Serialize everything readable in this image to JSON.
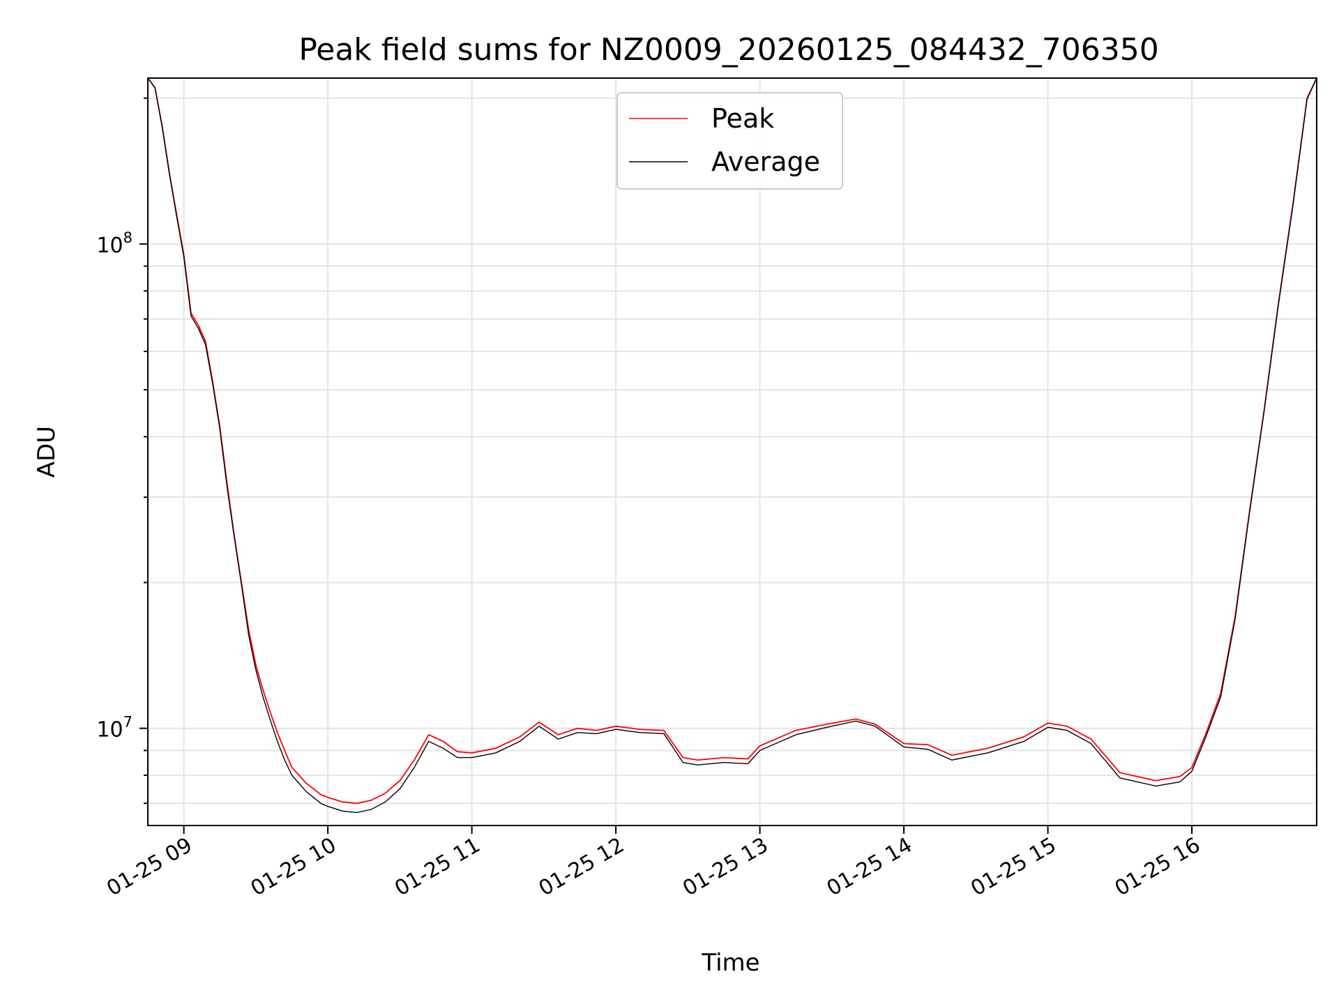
{
  "chart_data": {
    "type": "line",
    "title": "Peak field sums for NZ0009_20260125_084432_706350",
    "xlabel": "Time",
    "ylabel": "ADU",
    "yscale": "log",
    "ylim": [
      6300000,
      220000000
    ],
    "xlim": [
      "2026-01-25T08:45:00",
      "2026-01-25T16:52:00"
    ],
    "x_ticks": [
      {
        "value": "2026-01-25T09:00:00",
        "label": "01-25 09"
      },
      {
        "value": "2026-01-25T10:00:00",
        "label": "01-25 10"
      },
      {
        "value": "2026-01-25T11:00:00",
        "label": "01-25 11"
      },
      {
        "value": "2026-01-25T12:00:00",
        "label": "01-25 12"
      },
      {
        "value": "2026-01-25T13:00:00",
        "label": "01-25 13"
      },
      {
        "value": "2026-01-25T14:00:00",
        "label": "01-25 14"
      },
      {
        "value": "2026-01-25T15:00:00",
        "label": "01-25 15"
      },
      {
        "value": "2026-01-25T16:00:00",
        "label": "01-25 16"
      }
    ],
    "y_ticks": [
      {
        "value": 10000000,
        "base": "10",
        "exp": "7"
      },
      {
        "value": 100000000,
        "base": "10",
        "exp": "8"
      }
    ],
    "grid": true,
    "legend_position": "top-center",
    "x": [
      "2026-01-25T08:45:00",
      "2026-01-25T08:48:00",
      "2026-01-25T08:51:00",
      "2026-01-25T08:54:00",
      "2026-01-25T08:57:00",
      "2026-01-25T09:00:00",
      "2026-01-25T09:03:00",
      "2026-01-25T09:06:00",
      "2026-01-25T09:09:00",
      "2026-01-25T09:12:00",
      "2026-01-25T09:15:00",
      "2026-01-25T09:18:00",
      "2026-01-25T09:21:00",
      "2026-01-25T09:24:00",
      "2026-01-25T09:27:00",
      "2026-01-25T09:30:00",
      "2026-01-25T09:33:00",
      "2026-01-25T09:36:00",
      "2026-01-25T09:39:00",
      "2026-01-25T09:42:00",
      "2026-01-25T09:45:00",
      "2026-01-25T09:48:00",
      "2026-01-25T09:51:00",
      "2026-01-25T09:54:00",
      "2026-01-25T09:57:00",
      "2026-01-25T10:00:00",
      "2026-01-25T10:06:00",
      "2026-01-25T10:12:00",
      "2026-01-25T10:18:00",
      "2026-01-25T10:24:00",
      "2026-01-25T10:30:00",
      "2026-01-25T10:36:00",
      "2026-01-25T10:42:00",
      "2026-01-25T10:48:00",
      "2026-01-25T10:54:00",
      "2026-01-25T11:00:00",
      "2026-01-25T11:10:00",
      "2026-01-25T11:20:00",
      "2026-01-25T11:28:00",
      "2026-01-25T11:36:00",
      "2026-01-25T11:44:00",
      "2026-01-25T11:52:00",
      "2026-01-25T12:00:00",
      "2026-01-25T12:10:00",
      "2026-01-25T12:20:00",
      "2026-01-25T12:28:00",
      "2026-01-25T12:34:00",
      "2026-01-25T12:45:00",
      "2026-01-25T12:55:00",
      "2026-01-25T13:00:00",
      "2026-01-25T13:15:00",
      "2026-01-25T13:28:00",
      "2026-01-25T13:40:00",
      "2026-01-25T13:48:00",
      "2026-01-25T14:00:00",
      "2026-01-25T14:10:00",
      "2026-01-25T14:20:00",
      "2026-01-25T14:35:00",
      "2026-01-25T14:50:00",
      "2026-01-25T15:00:00",
      "2026-01-25T15:08:00",
      "2026-01-25T15:18:00",
      "2026-01-25T15:30:00",
      "2026-01-25T15:45:00",
      "2026-01-25T15:55:00",
      "2026-01-25T16:00:00",
      "2026-01-25T16:06:00",
      "2026-01-25T16:12:00",
      "2026-01-25T16:18:00",
      "2026-01-25T16:24:00",
      "2026-01-25T16:30:00",
      "2026-01-25T16:36:00",
      "2026-01-25T16:42:00",
      "2026-01-25T16:48:00",
      "2026-01-25T16:52:00"
    ],
    "series": [
      {
        "name": "Peak",
        "color": "#ff0000",
        "values": [
          220000000,
          210000000,
          175000000,
          140000000,
          115000000,
          95000000,
          72000000,
          68000000,
          63000000,
          52000000,
          42000000,
          32000000,
          25000000,
          20000000,
          16000000,
          13500000,
          12000000,
          10800000,
          9800000,
          9000000,
          8300000,
          8000000,
          7700000,
          7500000,
          7300000,
          7200000,
          7050000,
          7000000,
          7100000,
          7350000,
          7800000,
          8600000,
          9700000,
          9400000,
          8950000,
          8900000,
          9100000,
          9600000,
          10300000,
          9700000,
          10000000,
          9900000,
          10100000,
          9950000,
          9900000,
          8700000,
          8600000,
          8700000,
          8650000,
          9200000,
          9900000,
          10200000,
          10450000,
          10200000,
          9300000,
          9250000,
          8800000,
          9100000,
          9600000,
          10250000,
          10100000,
          9500000,
          8100000,
          7800000,
          7950000,
          8300000,
          9800000,
          11800000,
          17000000,
          28000000,
          45000000,
          75000000,
          120000000,
          200000000,
          220000000
        ]
      },
      {
        "name": "Average",
        "color": "#000000",
        "values": [
          220000000,
          210000000,
          174000000,
          139000000,
          114000000,
          94000000,
          71000000,
          67000000,
          62000000,
          51500000,
          41500000,
          31500000,
          24800000,
          19800000,
          15600000,
          13200000,
          11600000,
          10400000,
          9400000,
          8600000,
          8000000,
          7700000,
          7400000,
          7200000,
          7000000,
          6900000,
          6750000,
          6700000,
          6800000,
          7050000,
          7500000,
          8300000,
          9400000,
          9100000,
          8700000,
          8700000,
          8900000,
          9400000,
          10100000,
          9500000,
          9800000,
          9750000,
          9950000,
          9800000,
          9750000,
          8500000,
          8400000,
          8500000,
          8450000,
          9000000,
          9700000,
          10050000,
          10350000,
          10100000,
          9150000,
          9050000,
          8600000,
          8900000,
          9400000,
          10050000,
          9900000,
          9300000,
          7900000,
          7600000,
          7750000,
          8150000,
          9650000,
          11600000,
          16800000,
          27800000,
          44800000,
          74500000,
          119000000,
          199000000,
          220000000
        ]
      }
    ]
  }
}
